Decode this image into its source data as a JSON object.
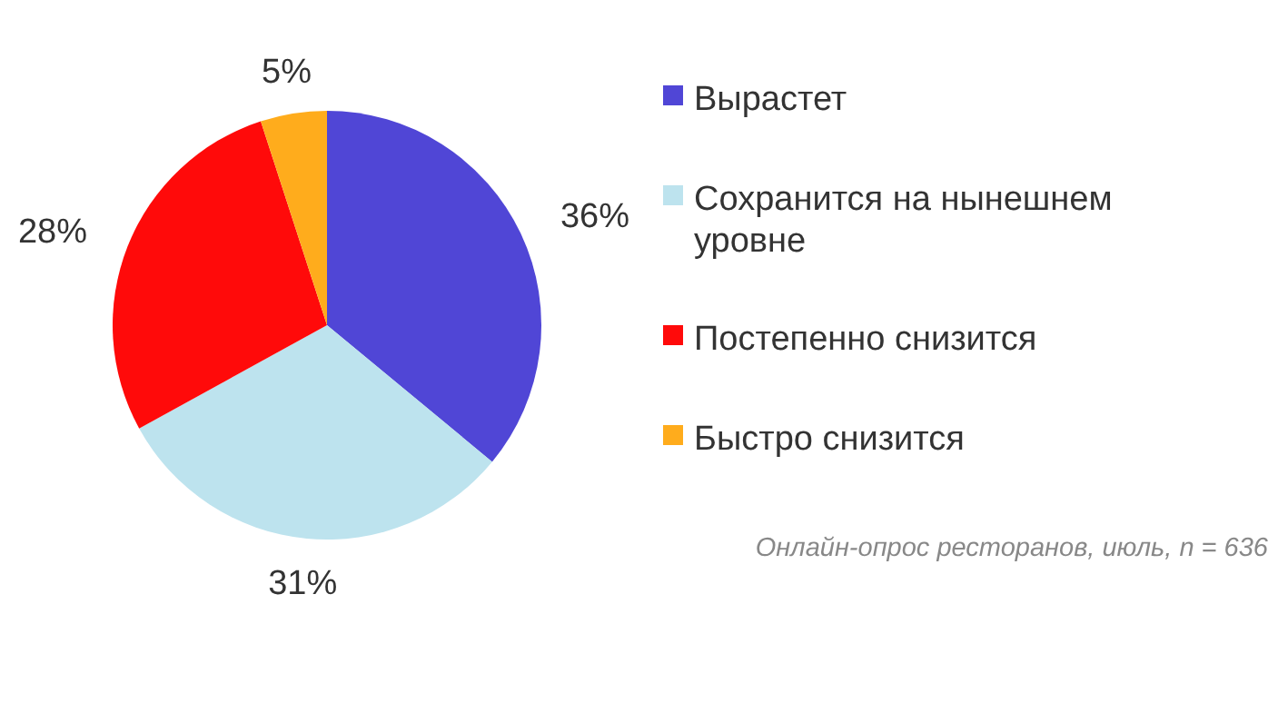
{
  "chart_data": {
    "type": "pie",
    "categories": [
      "Вырастет",
      "Сохранится на нынешнем уровне",
      "Постепенно снизится",
      "Быстро снизится"
    ],
    "values": [
      36,
      31,
      28,
      5
    ],
    "colors": [
      "#5046d6",
      "#bde3ee",
      "#ff0a0a",
      "#ffac1c"
    ],
    "value_labels": [
      "36%",
      "31%",
      "28%",
      "5%"
    ],
    "legend": "right",
    "annotations": [
      "Онлайн-опрос ресторанов, июль, n = 636"
    ]
  }
}
